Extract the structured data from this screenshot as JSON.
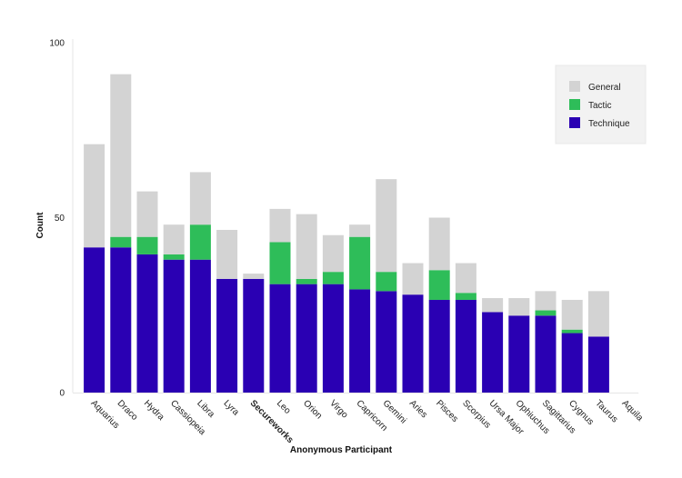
{
  "chart_data": {
    "type": "bar",
    "stacked": true,
    "xlabel": "Anonymous Participant",
    "ylabel": "Count",
    "ylim": [
      0,
      100
    ],
    "yticks": [
      0,
      50,
      100
    ],
    "grid": false,
    "legend_position": "top-right",
    "highlight_category": "Secureworks",
    "categories": [
      "Aquarius",
      "Draco",
      "Hydra",
      "Cassiopeia",
      "Libra",
      "Lyra",
      "Secureworks",
      "Leo",
      "Orion",
      "Virgo",
      "Capricorn",
      "Gemini",
      "Aries",
      "Pisces",
      "Scorpius",
      "Ursa Major",
      "Ophiuchus",
      "Sagittarius",
      "Cygnus",
      "Taurus",
      "Aquila"
    ],
    "series": [
      {
        "name": "Technique",
        "color": "#2a00b3",
        "values": [
          41.5,
          41.5,
          39.5,
          38,
          38,
          32.5,
          32.5,
          31,
          31,
          31,
          29.5,
          29,
          28,
          26.5,
          26.5,
          23,
          22,
          22,
          17,
          16,
          0
        ]
      },
      {
        "name": "Tactic",
        "color": "#2ebd59",
        "values": [
          0,
          3,
          5,
          1.5,
          10,
          0,
          0,
          12,
          1.5,
          3.5,
          15,
          5.5,
          0,
          8.5,
          2,
          0,
          0,
          1.5,
          1,
          0,
          0
        ]
      },
      {
        "name": "General",
        "color": "#d3d3d3",
        "values": [
          29.5,
          46.5,
          13,
          8.5,
          15,
          14,
          1.5,
          9.5,
          18.5,
          10.5,
          3.5,
          26.5,
          9,
          15,
          8.5,
          4,
          5,
          5.5,
          8.5,
          13,
          0
        ]
      }
    ],
    "legend_order": [
      "General",
      "Tactic",
      "Technique"
    ]
  }
}
